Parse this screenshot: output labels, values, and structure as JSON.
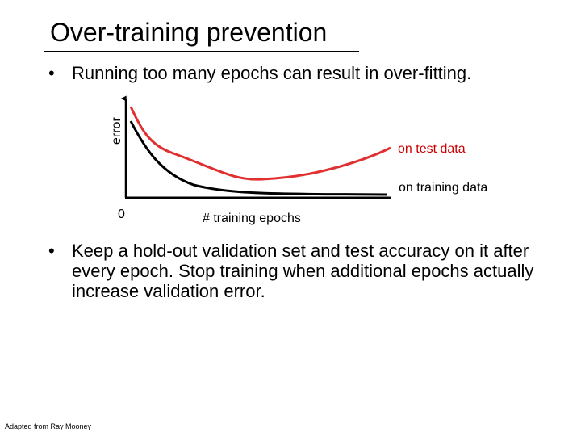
{
  "slide": {
    "title": "Over-training prevention",
    "bullet_glyph": "•",
    "bullets": [
      "Running too many epochs can result in over-fitting.",
      "Keep a hold-out validation set and test accuracy on it after every epoch. Stop training when additional epochs actually increase validation error."
    ],
    "credit": "Adapted from Ray Mooney"
  },
  "diagram": {
    "y_label": "error",
    "x_label": "# training epochs",
    "origin_label": "0",
    "test_curve_label": "on test data",
    "training_curve_label": "on training data",
    "colors": {
      "axis": "#000000",
      "test_curve": "#e03030",
      "training_curve": "#000000",
      "test_label": "#cc0000"
    }
  }
}
